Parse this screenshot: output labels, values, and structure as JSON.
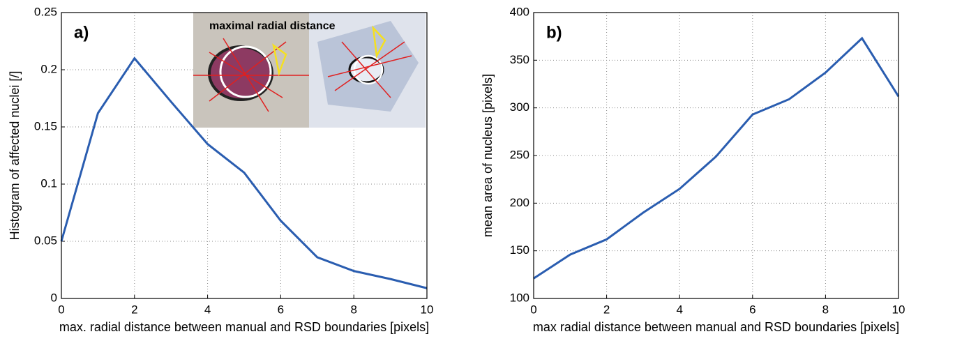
{
  "chart_data": [
    {
      "type": "line",
      "panel_label": "a)",
      "annotation": "maximal radial distance",
      "xlabel": "max. radial distance between manual and RSD boundaries [pixels]",
      "ylabel": "Histogram of affected nuclei [/]",
      "x": [
        0,
        1,
        2,
        3,
        4,
        5,
        6,
        7,
        8,
        9,
        10
      ],
      "values": [
        0.05,
        0.162,
        0.21,
        0.172,
        0.135,
        0.11,
        0.068,
        0.036,
        0.024,
        0.017,
        0.009
      ],
      "color": "#2a5db0",
      "xlim": [
        0,
        10
      ],
      "ylim": [
        0,
        0.25
      ],
      "xticks": [
        0,
        2,
        4,
        6,
        8,
        10
      ],
      "yticks": [
        0,
        0.05,
        0.1,
        0.15,
        0.2,
        0.25
      ],
      "grid": true
    },
    {
      "type": "line",
      "panel_label": "b)",
      "xlabel": "max radial distance between manual and RSD boundaries [pixels]",
      "ylabel": "mean area of nucleus [pixels]",
      "x": [
        0,
        1,
        2,
        3,
        4,
        5,
        6,
        7,
        8,
        9,
        10
      ],
      "values": [
        121,
        146,
        162,
        190,
        215,
        249,
        293,
        309,
        337,
        373,
        312
      ],
      "color": "#2a5db0",
      "xlim": [
        0,
        10
      ],
      "ylim": [
        100,
        400
      ],
      "xticks": [
        0,
        2,
        4,
        6,
        8,
        10
      ],
      "yticks": [
        100,
        150,
        200,
        250,
        300,
        350,
        400
      ],
      "grid": true
    }
  ]
}
